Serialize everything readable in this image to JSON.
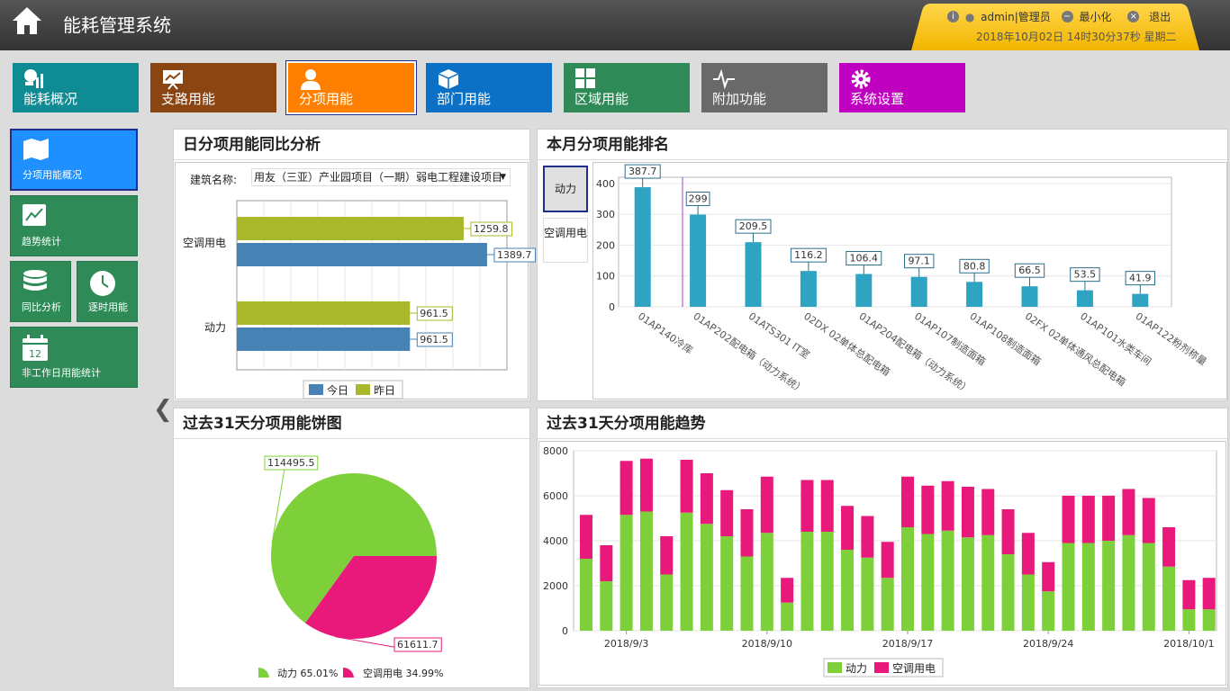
{
  "app": {
    "title": "能耗管理系统"
  },
  "user": {
    "info_label": "i",
    "user_label": "admin|管理员",
    "minimize_label": "最小化",
    "logout_label": "退出",
    "datetime": "2018年10月02日 14时30分37秒 星期二"
  },
  "nav": [
    {
      "label": "能耗概况",
      "color": "#0f8b93"
    },
    {
      "label": "支路用能",
      "color": "#8b4513"
    },
    {
      "label": "分项用能",
      "color": "#ff8000"
    },
    {
      "label": "部门用能",
      "color": "#0b71c6"
    },
    {
      "label": "区域用能",
      "color": "#2e8b57"
    },
    {
      "label": "附加功能",
      "color": "#696969"
    },
    {
      "label": "系统设置",
      "color": "#c000c0"
    }
  ],
  "side": [
    {
      "label": "分项用能概况"
    },
    {
      "label": "趋势统计"
    },
    {
      "label": "同比分析"
    },
    {
      "label": "逐时用能"
    },
    {
      "label": "非工作日用能统计",
      "badge": "12"
    }
  ],
  "panels": {
    "daily": {
      "title": "日分项用能同比分析",
      "building_label": "建筑名称:",
      "building_value": "用友（三亚）产业园项目（一期）弱电工程建设项目"
    },
    "ranking": {
      "title": "本月分项用能排名",
      "tabs": [
        "动力",
        "空调用电"
      ]
    },
    "pie": {
      "title": "过去31天分项用能饼图"
    },
    "trend": {
      "title": "过去31天分项用能趋势"
    }
  },
  "chart_data": [
    {
      "type": "bar",
      "orientation": "horizontal",
      "categories": [
        "空调用电",
        "动力"
      ],
      "series": [
        {
          "name": "今日",
          "color": "#4682b4",
          "values": [
            1389.7,
            961.5
          ],
          "labels": [
            "1389.7",
            "961.5"
          ]
        },
        {
          "name": "昨日",
          "color": "#a9b82a",
          "values": [
            1259.8,
            961.5
          ],
          "labels": [
            "1259.8",
            "961.5"
          ]
        }
      ],
      "xlim": [
        0,
        1500
      ],
      "legend": "bottom"
    },
    {
      "type": "bar",
      "categories": [
        "01AP140冷库",
        "01AP202配电箱（动力系统）",
        "01ATS301 IT室",
        "02DX 02单体总配电箱",
        "01AP204配电箱（动力系统）",
        "01AP107制造面箱",
        "01AP108制造面箱",
        "02FX 02单体通风总配电箱",
        "01AP101水类车间",
        "01AP122粉剂称量"
      ],
      "values": [
        387.7,
        299,
        209.5,
        116.2,
        106.4,
        97.1,
        80.8,
        66.5,
        53.5,
        41.9
      ],
      "labels": [
        "387.7",
        "299",
        "209.5",
        "116.2",
        "106.4",
        "97.1",
        "80.8",
        "66.5",
        "53.5",
        "41.9"
      ],
      "yticks": [
        "0",
        "100",
        "200",
        "300",
        "400"
      ],
      "ylim": [
        0,
        420
      ]
    },
    {
      "type": "pie",
      "slices": [
        {
          "name": "动力",
          "value": 114495.5,
          "label": "114495.5",
          "percent": "65.01%",
          "color": "#7ed03a"
        },
        {
          "name": "空调用电",
          "value": 61611.7,
          "label": "61611.7",
          "percent": "34.99%",
          "color": "#e8197a"
        }
      ],
      "legend": "bottom"
    },
    {
      "type": "bar",
      "stacked": true,
      "series": [
        {
          "name": "动力",
          "color": "#7ed03a",
          "values": [
            3200,
            2200,
            5150,
            5300,
            2500,
            5250,
            4750,
            4200,
            3300,
            4350,
            1250,
            4400,
            4400,
            3600,
            3250,
            2350,
            4600,
            4300,
            4450,
            4150,
            4250,
            3400,
            2500,
            1750,
            3900,
            3900,
            4000,
            4250,
            3900,
            2850,
            950,
            950
          ]
        },
        {
          "name": "空调用电",
          "color": "#e8197a",
          "values": [
            1950,
            1600,
            2400,
            2350,
            1700,
            2350,
            2250,
            2050,
            2100,
            2500,
            1100,
            2300,
            2300,
            1950,
            1850,
            1600,
            2250,
            2150,
            2200,
            2250,
            2050,
            2000,
            1850,
            1300,
            2100,
            2100,
            2000,
            2050,
            2000,
            1750,
            1300,
            1400
          ]
        }
      ],
      "xticks": [
        "2018/9/3",
        "2018/9/10",
        "2018/9/17",
        "2018/9/24",
        "2018/10/1"
      ],
      "yticks": [
        "0",
        "2000",
        "4000",
        "6000",
        "8000"
      ],
      "ylim": [
        0,
        8000
      ],
      "legend": "bottom"
    }
  ]
}
